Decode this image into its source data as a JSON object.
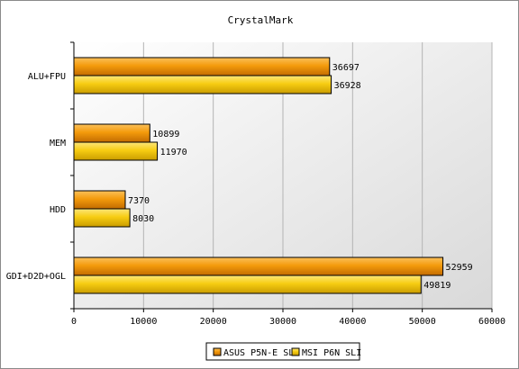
{
  "chart_data": {
    "type": "bar",
    "orientation": "horizontal",
    "title": "CrystalMark",
    "categories": [
      "ALU+FPU",
      "MEM",
      "HDD",
      "GDI+D2D+OGL"
    ],
    "series": [
      {
        "name": "ASUS P5N-E SLI",
        "color": "#f49b0c",
        "values": [
          36697,
          10899,
          7370,
          52959
        ]
      },
      {
        "name": "MSI P6N SLI",
        "color": "#f7cd12",
        "values": [
          36928,
          11970,
          8030,
          49819
        ]
      }
    ],
    "xlim": [
      0,
      60000
    ],
    "xticks": [
      0,
      10000,
      20000,
      30000,
      40000,
      50000,
      60000
    ],
    "grid": true,
    "legend_position": "bottom",
    "data_labels": true
  }
}
